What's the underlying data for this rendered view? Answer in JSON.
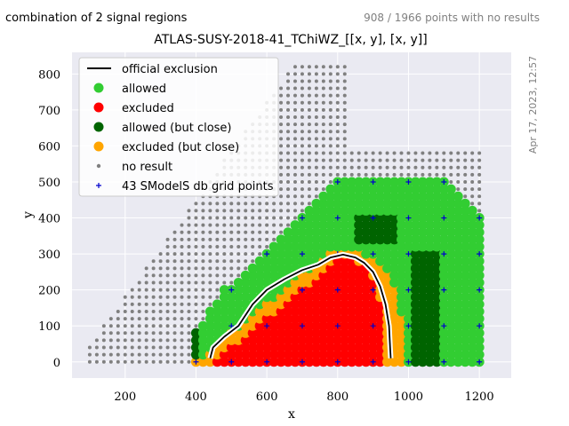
{
  "header": {
    "left": "combination of 2 signal regions",
    "right": "908 / 1966 points with no results"
  },
  "side_label": "Apr 17, 2023, 12:57",
  "chart_data": {
    "type": "scatter",
    "title": "ATLAS-SUSY-2018-41_TChiWZ_[[x, y], [x, y]]",
    "xlabel": "x",
    "ylabel": "y",
    "xlim": [
      50,
      1290
    ],
    "ylim": [
      -45,
      860
    ],
    "xticks": [
      200,
      400,
      600,
      800,
      1000,
      1200
    ],
    "yticks": [
      0,
      100,
      200,
      300,
      400,
      500,
      600,
      700,
      800
    ],
    "grid": true,
    "legend_position": "top-left",
    "colors": {
      "background": "#eaeaf2",
      "allowed": "#32cd32",
      "excluded": "#ff0000",
      "allowed_close": "#006400",
      "excluded_close": "#ffa500",
      "no_result": "#808080",
      "grid_points": "#0000cd",
      "exclusion": "#000000"
    },
    "legend": [
      {
        "key": "exclusion",
        "label": "official exclusion"
      },
      {
        "key": "allowed",
        "label": "allowed"
      },
      {
        "key": "excluded",
        "label": "excluded"
      },
      {
        "key": "allowed_close",
        "label": "allowed (but close)"
      },
      {
        "key": "excluded_close",
        "label": "excluded (but close)"
      },
      {
        "key": "no_result",
        "label": "no result"
      },
      {
        "key": "grid_points",
        "label": "43 SModelS db grid points"
      }
    ],
    "grid_point_coords": [
      [
        400,
        0
      ],
      [
        500,
        0
      ],
      [
        600,
        0
      ],
      [
        700,
        0
      ],
      [
        800,
        0
      ],
      [
        900,
        0
      ],
      [
        1000,
        0
      ],
      [
        1100,
        0
      ],
      [
        1200,
        0
      ],
      [
        500,
        100
      ],
      [
        600,
        100
      ],
      [
        700,
        100
      ],
      [
        800,
        100
      ],
      [
        900,
        100
      ],
      [
        1000,
        100
      ],
      [
        1100,
        100
      ],
      [
        1200,
        100
      ],
      [
        500,
        200
      ],
      [
        600,
        200
      ],
      [
        700,
        200
      ],
      [
        800,
        200
      ],
      [
        900,
        200
      ],
      [
        1000,
        200
      ],
      [
        1100,
        200
      ],
      [
        1200,
        200
      ],
      [
        600,
        300
      ],
      [
        700,
        300
      ],
      [
        800,
        300
      ],
      [
        900,
        300
      ],
      [
        1000,
        300
      ],
      [
        1100,
        300
      ],
      [
        1200,
        300
      ],
      [
        700,
        400
      ],
      [
        800,
        400
      ],
      [
        900,
        400
      ],
      [
        1000,
        400
      ],
      [
        1100,
        400
      ],
      [
        1200,
        400
      ],
      [
        800,
        500
      ],
      [
        900,
        500
      ],
      [
        1000,
        500
      ],
      [
        1100,
        500
      ],
      [
        700,
        200
      ]
    ],
    "official_exclusion": [
      [
        440,
        10
      ],
      [
        448,
        40
      ],
      [
        480,
        70
      ],
      [
        520,
        100
      ],
      [
        560,
        160
      ],
      [
        600,
        200
      ],
      [
        650,
        230
      ],
      [
        700,
        255
      ],
      [
        745,
        270
      ],
      [
        780,
        290
      ],
      [
        815,
        298
      ],
      [
        850,
        290
      ],
      [
        875,
        275
      ],
      [
        900,
        250
      ],
      [
        920,
        210
      ],
      [
        935,
        160
      ],
      [
        945,
        100
      ],
      [
        948,
        40
      ],
      [
        950,
        10
      ]
    ]
  }
}
